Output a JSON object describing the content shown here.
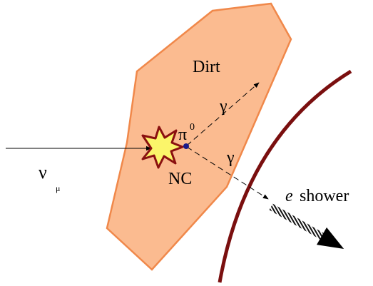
{
  "region": {
    "label": "Dirt"
  },
  "interaction": {
    "label": "NC"
  },
  "pion": {
    "symbol": "π",
    "superscript": "0"
  },
  "photons": [
    {
      "label": "γ"
    },
    {
      "label": "γ"
    }
  ],
  "neutrino": {
    "symbol": "ν",
    "subscript": "μ"
  },
  "shower": {
    "particle": "e",
    "label": "shower"
  }
}
